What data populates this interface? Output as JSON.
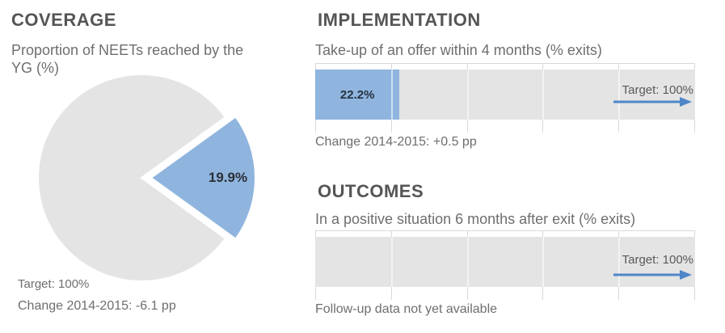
{
  "colors": {
    "accent_blue": "#8fb5df",
    "target_arrow_blue": "#4e86c8",
    "neutral_gray": "#e4e4e4",
    "gridline_gray": "#d9d9d9",
    "title_gray": "#555555",
    "text_gray": "#6e6e6e",
    "value_text_dark": "#273240"
  },
  "chart_data": [
    {
      "type": "pie",
      "title": "COVERAGE",
      "subtitle": "Proportion of NEETs reached by the YG (%)",
      "slices": [
        {
          "name": "reached-by-yg",
          "value": 19.9,
          "display": "19.9%",
          "color": "#8fb5df"
        },
        {
          "name": "not-reached",
          "value": 80.1,
          "display": "",
          "color": "#e4e4e4"
        }
      ],
      "target_note": "Target: 100%",
      "change_note": "Change 2014-2015: -6.1 pp"
    },
    {
      "type": "bar",
      "title": "IMPLEMENTATION",
      "subtitle": "Take-up of an offer within 4 months (% exits)",
      "value": 22.2,
      "value_display": "22.2%",
      "xlim": [
        0,
        100
      ],
      "ticks": [
        0,
        20,
        40,
        60,
        80,
        100
      ],
      "target": 100,
      "target_label": "Target: 100%",
      "note": "Change 2014-2015: +0.5 pp"
    },
    {
      "type": "bar",
      "title": "OUTCOMES",
      "subtitle": "In a positive situation 6 months after exit (% exits)",
      "value": null,
      "value_display": "",
      "xlim": [
        0,
        100
      ],
      "ticks": [
        0,
        20,
        40,
        60,
        80,
        100
      ],
      "target": 100,
      "target_label": "Target: 100%",
      "note": "Follow-up data not yet available"
    }
  ]
}
